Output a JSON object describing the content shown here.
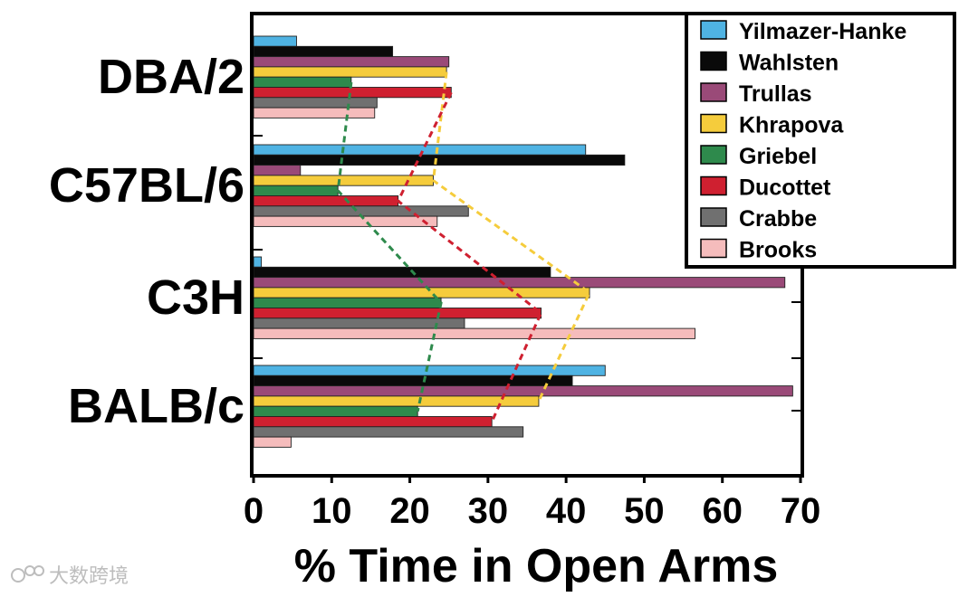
{
  "chart_data": {
    "type": "bar",
    "orientation": "horizontal",
    "categories": [
      "DBA/2",
      "C57BL/6",
      "C3H",
      "BALB/c"
    ],
    "xlabel": "% Time in Open Arms",
    "xlim": [
      0,
      70
    ],
    "xticks": [
      "0",
      "10",
      "20",
      "30",
      "40",
      "50",
      "60",
      "70"
    ],
    "grid": false,
    "legend_position": "top-right",
    "series": [
      {
        "name": "Yilmazer-Hanke",
        "color": "#4fb3e3",
        "values": [
          5.5,
          42.5,
          1,
          45
        ]
      },
      {
        "name": "Wahlsten",
        "color": "#0a0a0a",
        "values": [
          17.8,
          47.5,
          38,
          40.8
        ]
      },
      {
        "name": "Trullas",
        "color": "#9a4a78",
        "values": [
          25,
          6,
          68,
          69
        ]
      },
      {
        "name": "Khrapova",
        "color": "#f5cc3c",
        "values": [
          24.7,
          23,
          43,
          36.5
        ]
      },
      {
        "name": "Griebel",
        "color": "#2e8a4c",
        "values": [
          12.5,
          10.8,
          24,
          21
        ]
      },
      {
        "name": "Ducottet",
        "color": "#cf2030",
        "values": [
          25.3,
          18.5,
          36.8,
          30.5
        ]
      },
      {
        "name": "Crabbe",
        "color": "#707070",
        "values": [
          15.8,
          27.5,
          27,
          34.5
        ]
      },
      {
        "name": "Brooks",
        "color": "#f5bcbc",
        "values": [
          15.5,
          23.5,
          56.5,
          4.8
        ]
      }
    ],
    "trend_lines": [
      {
        "series": "Khrapova",
        "color": "#f5cc3c"
      },
      {
        "series": "Griebel",
        "color": "#2e8a4c"
      },
      {
        "series": "Ducottet",
        "color": "#cf2030"
      }
    ]
  },
  "watermark": "大数跨境"
}
